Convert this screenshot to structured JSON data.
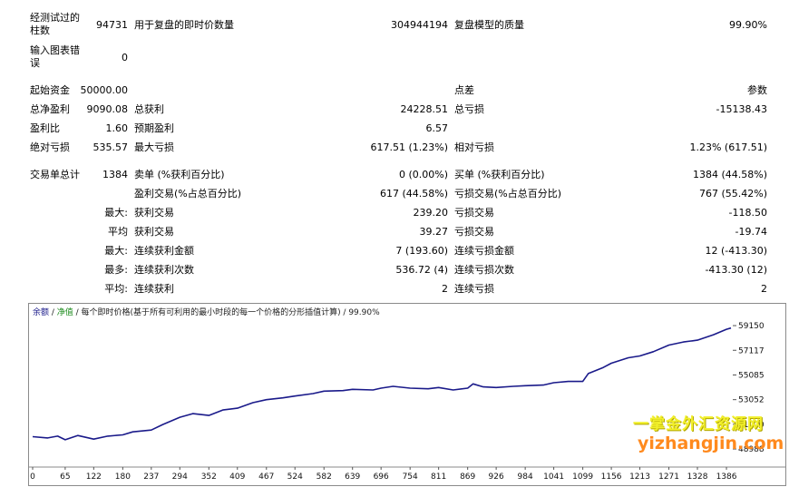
{
  "rows": {
    "bars_tested": {
      "label": "经测试过的柱数",
      "value": "94731"
    },
    "ticks_modeled": {
      "label": "用于复盘的即时价数量",
      "value": "304944194"
    },
    "model_quality": {
      "label": "复盘模型的质量",
      "value": "99.90%"
    },
    "mismatched_errors": {
      "label": "输入图表错误",
      "value": "0"
    },
    "initial_deposit": {
      "label": "起始资金",
      "value": "50000.00"
    },
    "spread": {
      "label": "点差",
      "value": "参数"
    },
    "total_net_profit": {
      "label": "总净盈利",
      "value": "9090.08"
    },
    "gross_profit": {
      "label": "总获利",
      "value": "24228.51"
    },
    "gross_loss": {
      "label": "总亏损",
      "value": "-15138.43"
    },
    "profit_factor": {
      "label": "盈利比",
      "value": "1.60"
    },
    "expected_payoff": {
      "label": "预期盈利",
      "value": "6.57"
    },
    "absolute_drawdown": {
      "label": "绝对亏损",
      "value": "535.57"
    },
    "maximal_drawdown": {
      "label": "最大亏损",
      "value": "617.51 (1.23%)"
    },
    "relative_drawdown": {
      "label": "相对亏损",
      "value": "1.23% (617.51)"
    },
    "total_trades": {
      "label": "交易单总计",
      "value": "1384"
    },
    "short_positions": {
      "label": "卖单 (%获利百分比)",
      "value": "0 (0.00%)"
    },
    "long_positions": {
      "label": "买单 (%获利百分比)",
      "value": "1384 (44.58%)"
    },
    "profit_trades": {
      "label": "盈利交易(%占总百分比)",
      "value": "617 (44.58%)"
    },
    "loss_trades": {
      "label": "亏损交易(%占总百分比)",
      "value": "767 (55.42%)"
    },
    "largest_profit": {
      "prefix": "最大:",
      "label": "获利交易",
      "value": "239.20"
    },
    "largest_loss": {
      "label": "亏损交易",
      "value": "-118.50"
    },
    "average_profit": {
      "prefix": "平均",
      "label": "获利交易",
      "value": "39.27"
    },
    "average_loss": {
      "label": "亏损交易",
      "value": "-19.74"
    },
    "max_consec_wins": {
      "prefix": "最大:",
      "label": "连续获利金额",
      "value": "7 (193.60)"
    },
    "max_consec_losses": {
      "label": "连续亏损金额",
      "value": "12 (-413.30)"
    },
    "maximal_consec_profit": {
      "prefix": "最多:",
      "label": "连续获利次数",
      "value": "536.72 (4)"
    },
    "maximal_consec_loss": {
      "label": "连续亏损次数",
      "value": "-413.30 (12)"
    },
    "average_consec_wins": {
      "prefix": "平均:",
      "label": "连续获利",
      "value": "2"
    },
    "average_consec_losses": {
      "label": "连续亏损",
      "value": "2"
    }
  },
  "chart_caption": {
    "balance": "余额",
    "sep1": " / ",
    "equity": "净值",
    "rest": " / 每个即时价格(基于所有可利用的最小时段的每一个价格的分形插值计算) / 99.90%"
  },
  "chart_data": {
    "type": "line",
    "xlim": [
      0,
      1395
    ],
    "ylim": [
      47500,
      59900
    ],
    "x_ticks": [
      "0",
      "65",
      "122",
      "180",
      "237",
      "294",
      "352",
      "409",
      "467",
      "524",
      "582",
      "639",
      "696",
      "754",
      "811",
      "869",
      "926",
      "984",
      "1041",
      "1099",
      "1156",
      "1213",
      "1271",
      "1328",
      "1386"
    ],
    "y_ticks": [
      "59150",
      "57117",
      "55085",
      "53052",
      "51020",
      "48988"
    ],
    "series": [
      {
        "color": "#1a1a8a",
        "x": [
          0,
          30,
          50,
          65,
          90,
          122,
          150,
          180,
          200,
          237,
          260,
          294,
          320,
          352,
          380,
          409,
          440,
          467,
          500,
          524,
          560,
          582,
          620,
          639,
          680,
          696,
          720,
          754,
          790,
          811,
          840,
          869,
          880,
          900,
          926,
          960,
          984,
          1020,
          1041,
          1070,
          1099,
          1110,
          1140,
          1156,
          1190,
          1213,
          1240,
          1271,
          1300,
          1328,
          1360,
          1386,
          1395
        ],
        "y": [
          50000,
          49900,
          50050,
          49750,
          50100,
          49800,
          50050,
          50150,
          50400,
          50550,
          51000,
          51600,
          51900,
          51750,
          52200,
          52350,
          52800,
          53050,
          53200,
          53350,
          53550,
          53750,
          53800,
          53900,
          53850,
          54000,
          54150,
          54000,
          53950,
          54050,
          53850,
          54000,
          54350,
          54100,
          54050,
          54150,
          54200,
          54250,
          54450,
          54550,
          54550,
          55200,
          55700,
          56050,
          56500,
          56650,
          57000,
          57550,
          57800,
          57950,
          58400,
          58850,
          58950
        ]
      }
    ]
  },
  "watermark": {
    "cn": "一掌金外汇资源网",
    "en": "yizhangjin.com"
  }
}
